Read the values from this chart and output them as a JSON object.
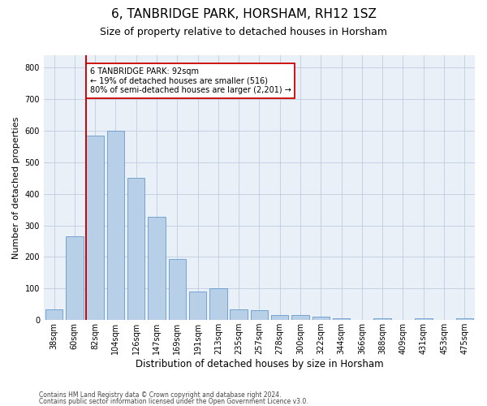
{
  "title1": "6, TANBRIDGE PARK, HORSHAM, RH12 1SZ",
  "title2": "Size of property relative to detached houses in Horsham",
  "xlabel": "Distribution of detached houses by size in Horsham",
  "ylabel": "Number of detached properties",
  "bar_labels": [
    "38sqm",
    "60sqm",
    "82sqm",
    "104sqm",
    "126sqm",
    "147sqm",
    "169sqm",
    "191sqm",
    "213sqm",
    "235sqm",
    "257sqm",
    "278sqm",
    "300sqm",
    "322sqm",
    "344sqm",
    "366sqm",
    "388sqm",
    "409sqm",
    "431sqm",
    "453sqm",
    "475sqm"
  ],
  "bar_values": [
    35,
    265,
    585,
    600,
    450,
    328,
    194,
    90,
    100,
    35,
    32,
    17,
    15,
    10,
    5,
    0,
    5,
    0,
    5,
    0,
    5
  ],
  "bar_color": "#b8cfe8",
  "bar_edge_color": "#6699cc",
  "red_line_index": 2,
  "red_line_color": "#cc0000",
  "annotation_text": "6 TANBRIDGE PARK: 92sqm\n← 19% of detached houses are smaller (516)\n80% of semi-detached houses are larger (2,201) →",
  "annotation_box_color": "#ffffff",
  "annotation_box_edge": "#cc0000",
  "ylim": [
    0,
    840
  ],
  "yticks": [
    0,
    100,
    200,
    300,
    400,
    500,
    600,
    700,
    800
  ],
  "footer1": "Contains HM Land Registry data © Crown copyright and database right 2024.",
  "footer2": "Contains public sector information licensed under the Open Government Licence v3.0.",
  "bg_color": "#ffffff",
  "plot_bg_color": "#eaf0f8",
  "grid_color": "#c0cce0",
  "title1_fontsize": 11,
  "title2_fontsize": 9,
  "ylabel_fontsize": 8,
  "xlabel_fontsize": 8.5,
  "tick_fontsize": 7,
  "footer_fontsize": 5.5,
  "annot_fontsize": 7
}
